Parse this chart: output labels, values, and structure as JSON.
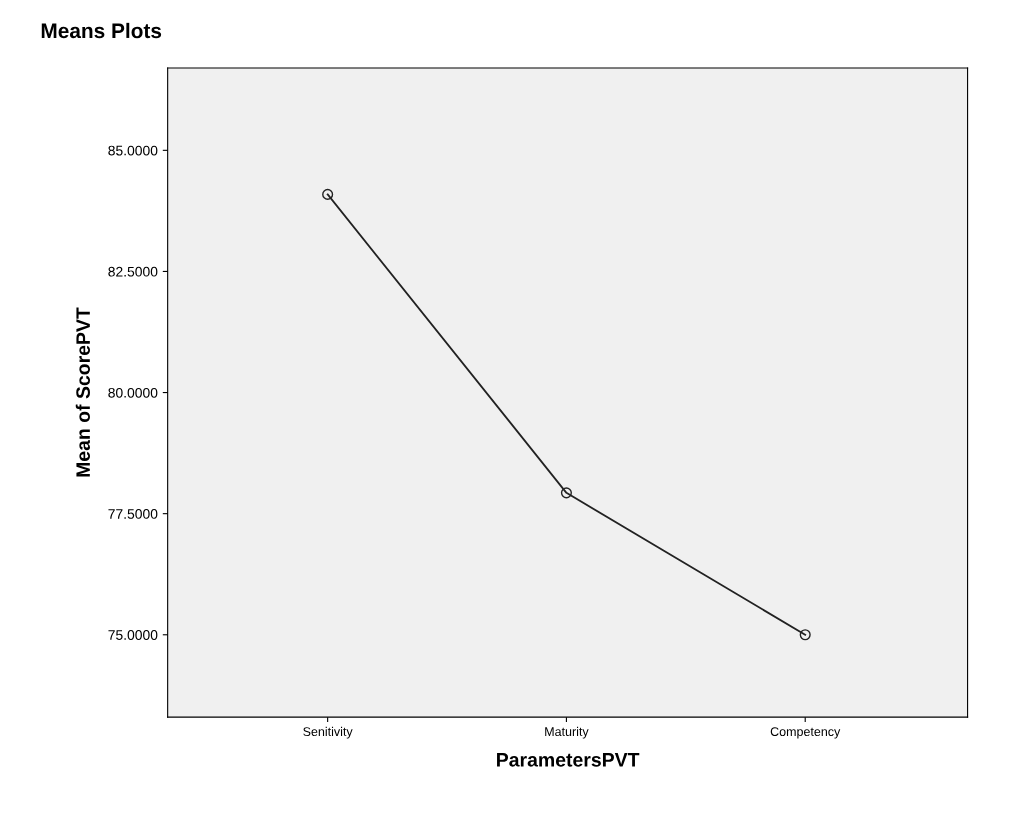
{
  "chart_data": {
    "type": "line",
    "title": "Means Plots",
    "xlabel": "ParametersPVT",
    "ylabel": "Mean of ScorePVT",
    "categories": [
      "Senitivity",
      "Maturity",
      "Competency"
    ],
    "series": [
      {
        "color": "#222222",
        "values": [
          84.09,
          77.93,
          75.0
        ]
      }
    ],
    "ylim": [
      73.3,
      86.7
    ],
    "yticks": [
      {
        "value": 75,
        "label": "75.0000"
      },
      {
        "value": 77.5,
        "label": "77.5000"
      },
      {
        "value": 80,
        "label": "80.0000"
      },
      {
        "value": 82.5,
        "label": "82.5000"
      },
      {
        "value": 85,
        "label": "85.0000"
      }
    ],
    "marker": "circle",
    "line_style": "solid",
    "grid": false,
    "legend": false
  }
}
